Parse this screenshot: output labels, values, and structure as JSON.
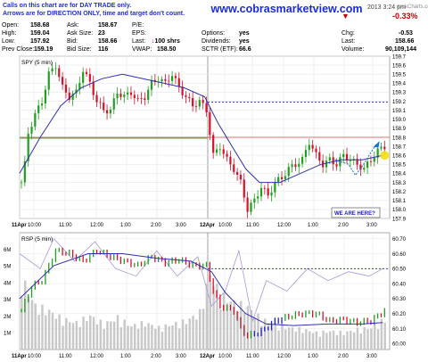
{
  "header": {
    "notice_line1": "Calls on this chart are for DAY TRADE only.",
    "notice_line2": "Arrows are for DIRECTION ONLY, time and target don't count.",
    "website": "www.cobrasmarketview.com",
    "date_time": "2013 3:24 pm",
    "watermark": "tockCharts.com",
    "change_pct": "-0.33%",
    "change_label": "Chg:",
    "change_value": "-0.53",
    "last_label": "Last:",
    "last_value": "158.66",
    "volume_label": "Volume:",
    "volume_value": "90,109,144",
    "fields": [
      {
        "label": "Open:",
        "value": "158.68"
      },
      {
        "label": "High:",
        "value": "159.04"
      },
      {
        "label": "Low:",
        "value": "157.92"
      },
      {
        "label": "Prev Close:",
        "value": "159.19"
      },
      {
        "label": "Ask:",
        "value": "158.67"
      },
      {
        "label": "Ask Size:",
        "value": "23"
      },
      {
        "label": "Bid:",
        "value": "158.66"
      },
      {
        "label": "Bid Size:",
        "value": "116"
      },
      {
        "label": "P/E:",
        "value": ""
      },
      {
        "label": "EPS:",
        "value": ""
      },
      {
        "label": "Last:",
        "value": "100 shrs"
      },
      {
        "label": "VWAP:",
        "value": "158.50"
      },
      {
        "label": "Options:",
        "value": "yes"
      },
      {
        "label": "Dividends:",
        "value": "yes"
      },
      {
        "label": "SCTR (ETF):",
        "value": "66.6"
      }
    ]
  },
  "colors": {
    "up_bar": "#20a020",
    "down_bar": "#d8102c",
    "ma": "#3030b0",
    "hline": "#1c1cd0",
    "red_line": "#e07070",
    "green_line": "#40b040",
    "rsi_line": "#aa98d8",
    "volume": "#c8c8c8",
    "arrow": "#1870e0",
    "highlight": "#f0e010"
  },
  "chart_data": [
    {
      "type": "candlestick",
      "title": "SPY (5 min)",
      "ylim": [
        157.9,
        159.7
      ],
      "y_ticks": [
        "159.7",
        "159.6",
        "159.5",
        "159.4",
        "159.3",
        "159.2",
        "159.1",
        "159.0",
        "158.9",
        "158.8",
        "158.7",
        "158.6",
        "158.5",
        "158.4",
        "158.3",
        "158.2",
        "158.1",
        "158.0",
        "157.9"
      ],
      "x_labels": [
        "11Apr",
        "10:00",
        "11:00",
        "12:00",
        "1:00",
        "2:00",
        "3:00",
        "12Apr",
        "10:00",
        "11:00",
        "12:00",
        "1:00",
        "2:00",
        "3:00"
      ],
      "horizontal_lines": [
        {
          "value": 159.19,
          "style": "dashed"
        },
        {
          "value": 158.8,
          "style": "solid"
        }
      ],
      "close_path": [
        {
          "t": 0,
          "v": 158.3
        },
        {
          "t": 1,
          "v": 158.5
        },
        {
          "t": 2,
          "v": 158.85
        },
        {
          "t": 4,
          "v": 159.05
        },
        {
          "t": 6,
          "v": 159.2
        },
        {
          "t": 8,
          "v": 159.5
        },
        {
          "t": 10,
          "v": 159.6
        },
        {
          "t": 12,
          "v": 159.35
        },
        {
          "t": 14,
          "v": 159.25
        },
        {
          "t": 16,
          "v": 159.3
        },
        {
          "t": 18,
          "v": 159.55
        },
        {
          "t": 20,
          "v": 159.4
        },
        {
          "t": 22,
          "v": 159.2
        },
        {
          "t": 24,
          "v": 159.1
        },
        {
          "t": 26,
          "v": 159.1
        },
        {
          "t": 28,
          "v": 159.3
        },
        {
          "t": 30,
          "v": 159.25
        },
        {
          "t": 32,
          "v": 159.3
        },
        {
          "t": 34,
          "v": 159.2
        },
        {
          "t": 36,
          "v": 159.25
        },
        {
          "t": 38,
          "v": 159.4
        },
        {
          "t": 40,
          "v": 159.45
        },
        {
          "t": 42,
          "v": 159.4
        },
        {
          "t": 44,
          "v": 159.5
        },
        {
          "t": 46,
          "v": 159.35
        },
        {
          "t": 48,
          "v": 159.25
        },
        {
          "t": 50,
          "v": 159.15
        },
        {
          "t": 52,
          "v": 159.2
        },
        {
          "t": 54,
          "v": 159.1
        },
        {
          "t": 55,
          "v": 158.85
        },
        {
          "t": 56,
          "v": 158.6
        },
        {
          "t": 58,
          "v": 158.7
        },
        {
          "t": 60,
          "v": 158.55
        },
        {
          "t": 62,
          "v": 158.45
        },
        {
          "t": 64,
          "v": 158.3
        },
        {
          "t": 66,
          "v": 158.0
        },
        {
          "t": 68,
          "v": 158.1
        },
        {
          "t": 70,
          "v": 158.25
        },
        {
          "t": 72,
          "v": 158.15
        },
        {
          "t": 74,
          "v": 158.3
        },
        {
          "t": 76,
          "v": 158.35
        },
        {
          "t": 78,
          "v": 158.45
        },
        {
          "t": 80,
          "v": 158.5
        },
        {
          "t": 82,
          "v": 158.55
        },
        {
          "t": 84,
          "v": 158.75
        },
        {
          "t": 86,
          "v": 158.6
        },
        {
          "t": 88,
          "v": 158.5
        },
        {
          "t": 90,
          "v": 158.55
        },
        {
          "t": 92,
          "v": 158.5
        },
        {
          "t": 94,
          "v": 158.6
        },
        {
          "t": 96,
          "v": 158.55
        },
        {
          "t": 98,
          "v": 158.5
        },
        {
          "t": 100,
          "v": 158.45
        },
        {
          "t": 102,
          "v": 158.55
        },
        {
          "t": 104,
          "v": 158.65
        },
        {
          "t": 106,
          "v": 158.7
        }
      ],
      "ma_path": [
        {
          "t": 0,
          "v": 158.4
        },
        {
          "t": 6,
          "v": 158.8
        },
        {
          "t": 12,
          "v": 159.15
        },
        {
          "t": 18,
          "v": 159.35
        },
        {
          "t": 24,
          "v": 159.45
        },
        {
          "t": 30,
          "v": 159.5
        },
        {
          "t": 36,
          "v": 159.45
        },
        {
          "t": 42,
          "v": 159.4
        },
        {
          "t": 48,
          "v": 159.35
        },
        {
          "t": 54,
          "v": 159.25
        },
        {
          "t": 58,
          "v": 158.95
        },
        {
          "t": 62,
          "v": 158.7
        },
        {
          "t": 66,
          "v": 158.45
        },
        {
          "t": 70,
          "v": 158.3
        },
        {
          "t": 76,
          "v": 158.3
        },
        {
          "t": 82,
          "v": 158.4
        },
        {
          "t": 88,
          "v": 158.5
        },
        {
          "t": 94,
          "v": 158.55
        },
        {
          "t": 100,
          "v": 158.55
        },
        {
          "t": 106,
          "v": 158.6
        }
      ],
      "projection": [
        {
          "t": 92,
          "v": 158.55
        },
        {
          "t": 96,
          "v": 158.5
        },
        {
          "t": 98,
          "v": 158.38
        },
        {
          "t": 100,
          "v": 158.48
        },
        {
          "t": 104,
          "v": 158.72
        }
      ],
      "annotation": "WE ARE HERE?"
    },
    {
      "type": "line",
      "title": "RSP (5 min)",
      "ylim": [
        59.96,
        60.74
      ],
      "y_ticks": [
        "60.70",
        "60.60",
        "60.50",
        "60.40",
        "60.30",
        "60.20",
        "60.10",
        "60.00"
      ],
      "volume_ticks": [
        "6M",
        "5M",
        "4M",
        "3M",
        "2M",
        "1M"
      ],
      "x_labels": [
        "11Apr",
        "10:00",
        "11:00",
        "12:00",
        "1:00",
        "2:00",
        "3:00",
        "12Apr",
        "10:00",
        "11:00",
        "12:00",
        "1:00",
        "2:00",
        "3:00"
      ],
      "horizontal_lines": [
        {
          "value": 60.5,
          "style": "dashed"
        }
      ],
      "price_path": [
        {
          "t": 0,
          "v": 60.22
        },
        {
          "t": 3,
          "v": 60.38
        },
        {
          "t": 6,
          "v": 60.42
        },
        {
          "t": 10,
          "v": 60.62
        },
        {
          "t": 14,
          "v": 60.6
        },
        {
          "t": 18,
          "v": 60.55
        },
        {
          "t": 22,
          "v": 60.62
        },
        {
          "t": 26,
          "v": 60.58
        },
        {
          "t": 30,
          "v": 60.55
        },
        {
          "t": 34,
          "v": 60.52
        },
        {
          "t": 38,
          "v": 60.58
        },
        {
          "t": 42,
          "v": 60.54
        },
        {
          "t": 46,
          "v": 60.56
        },
        {
          "t": 50,
          "v": 60.52
        },
        {
          "t": 54,
          "v": 60.52
        },
        {
          "t": 56,
          "v": 60.35
        },
        {
          "t": 58,
          "v": 60.25
        },
        {
          "t": 62,
          "v": 60.22
        },
        {
          "t": 64,
          "v": 60.1
        },
        {
          "t": 66,
          "v": 60.05
        },
        {
          "t": 70,
          "v": 60.08
        },
        {
          "t": 74,
          "v": 60.15
        },
        {
          "t": 78,
          "v": 60.18
        },
        {
          "t": 82,
          "v": 60.2
        },
        {
          "t": 86,
          "v": 60.2
        },
        {
          "t": 90,
          "v": 60.15
        },
        {
          "t": 94,
          "v": 60.16
        },
        {
          "t": 98,
          "v": 60.14
        },
        {
          "t": 102,
          "v": 60.15
        },
        {
          "t": 106,
          "v": 60.22
        }
      ],
      "ma_path": [
        {
          "t": 0,
          "v": 60.3
        },
        {
          "t": 10,
          "v": 60.52
        },
        {
          "t": 20,
          "v": 60.6
        },
        {
          "t": 30,
          "v": 60.6
        },
        {
          "t": 40,
          "v": 60.57
        },
        {
          "t": 50,
          "v": 60.55
        },
        {
          "t": 56,
          "v": 60.48
        },
        {
          "t": 60,
          "v": 60.34
        },
        {
          "t": 66,
          "v": 60.2
        },
        {
          "t": 72,
          "v": 60.13
        },
        {
          "t": 80,
          "v": 60.12
        },
        {
          "t": 90,
          "v": 60.13
        },
        {
          "t": 100,
          "v": 60.13
        },
        {
          "t": 106,
          "v": 60.14
        }
      ],
      "rsi_path": [
        {
          "t": 0,
          "v": 60.6
        },
        {
          "t": 6,
          "v": 60.5
        },
        {
          "t": 10,
          "v": 60.7
        },
        {
          "t": 16,
          "v": 60.55
        },
        {
          "t": 22,
          "v": 60.68
        },
        {
          "t": 28,
          "v": 60.5
        },
        {
          "t": 34,
          "v": 60.45
        },
        {
          "t": 40,
          "v": 60.62
        },
        {
          "t": 46,
          "v": 60.45
        },
        {
          "t": 52,
          "v": 60.58
        },
        {
          "t": 56,
          "v": 60.25
        },
        {
          "t": 60,
          "v": 60.35
        },
        {
          "t": 64,
          "v": 60.62
        },
        {
          "t": 68,
          "v": 60.15
        },
        {
          "t": 72,
          "v": 60.42
        },
        {
          "t": 78,
          "v": 60.35
        },
        {
          "t": 84,
          "v": 60.5
        },
        {
          "t": 90,
          "v": 60.42
        },
        {
          "t": 96,
          "v": 60.48
        },
        {
          "t": 102,
          "v": 60.45
        },
        {
          "t": 106,
          "v": 60.5
        }
      ],
      "volume_millions": [
        {
          "t": 0,
          "v": 4.2
        },
        {
          "t": 4,
          "v": 2.6
        },
        {
          "t": 8,
          "v": 2.3
        },
        {
          "t": 12,
          "v": 1.8
        },
        {
          "t": 16,
          "v": 1.6
        },
        {
          "t": 20,
          "v": 2.0
        },
        {
          "t": 24,
          "v": 1.5
        },
        {
          "t": 28,
          "v": 1.9
        },
        {
          "t": 32,
          "v": 1.4
        },
        {
          "t": 36,
          "v": 1.6
        },
        {
          "t": 40,
          "v": 1.3
        },
        {
          "t": 44,
          "v": 1.5
        },
        {
          "t": 48,
          "v": 1.7
        },
        {
          "t": 52,
          "v": 2.2
        },
        {
          "t": 55,
          "v": 4.5
        },
        {
          "t": 58,
          "v": 3.2
        },
        {
          "t": 62,
          "v": 2.8
        },
        {
          "t": 66,
          "v": 2.5
        },
        {
          "t": 70,
          "v": 1.8
        },
        {
          "t": 74,
          "v": 1.5
        },
        {
          "t": 78,
          "v": 1.3
        },
        {
          "t": 82,
          "v": 1.2
        },
        {
          "t": 86,
          "v": 1.0
        },
        {
          "t": 90,
          "v": 1.1
        },
        {
          "t": 94,
          "v": 1.0
        },
        {
          "t": 98,
          "v": 1.2
        },
        {
          "t": 102,
          "v": 1.3
        },
        {
          "t": 106,
          "v": 1.8
        }
      ]
    }
  ]
}
